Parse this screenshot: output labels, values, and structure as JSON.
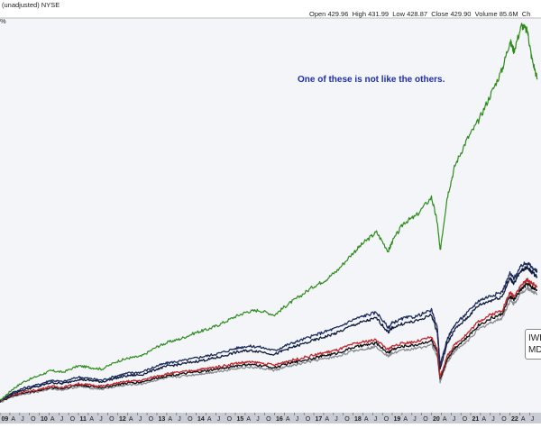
{
  "header": {
    "symbol_text": "(unadjusted)  NYSE",
    "left_fragment": "%",
    "open_label": "Open",
    "open_value": "429.96",
    "high_label": "High",
    "high_value": "431.99",
    "low_label": "Low",
    "low_value": "428.87",
    "close_label": "Close",
    "close_value": "429.90",
    "volume_label": "Volume",
    "volume_value": "85.6M",
    "chg_fragment": "Ch"
  },
  "annotation": "One of these is not like the others.",
  "legend": {
    "entry1": "IWB",
    "entry2": "MD"
  },
  "colors": {
    "plot_bg": "#f4f5f9",
    "green": "#2e8b1c",
    "navy": "#1c2b5e",
    "dark_navy": "#0f1a3a",
    "red": "#c0262c",
    "gray": "#8a8d92",
    "black": "#111111",
    "axis_bg": "#c9ccd3"
  },
  "chart_data": {
    "type": "line",
    "title": "",
    "xlabel": "",
    "ylabel": "",
    "x_range": [
      2009.0,
      2022.7
    ],
    "y_range": [
      0,
      12
    ],
    "grid": false,
    "x_tick_labels": [
      "09",
      "A",
      "J",
      "O",
      "10",
      "A",
      "J",
      "O",
      "11",
      "A",
      "J",
      "O",
      "12",
      "A",
      "J",
      "O",
      "13",
      "A",
      "J",
      "O",
      "14",
      "A",
      "J",
      "O",
      "15",
      "A",
      "J",
      "O",
      "16",
      "A",
      "J",
      "O",
      "17",
      "A",
      "J",
      "O",
      "18",
      "A",
      "J",
      "O",
      "19",
      "A",
      "J",
      "O",
      "20",
      "A",
      "J",
      "O",
      "21",
      "A",
      "J",
      "O",
      "22",
      "A",
      "J"
    ],
    "series": [
      {
        "name": "",
        "color": "green",
        "x": [
          2009.0,
          2009.3,
          2009.6,
          2010.0,
          2010.3,
          2010.6,
          2011.0,
          2011.3,
          2011.6,
          2012.0,
          2012.3,
          2012.6,
          2013.0,
          2013.3,
          2013.6,
          2014.0,
          2014.3,
          2014.6,
          2015.0,
          2015.3,
          2015.6,
          2016.0,
          2016.3,
          2016.6,
          2017.0,
          2017.3,
          2017.6,
          2018.0,
          2018.3,
          2018.6,
          2018.9,
          2019.0,
          2019.3,
          2019.6,
          2020.0,
          2020.15,
          2020.22,
          2020.4,
          2020.6,
          2020.9,
          2021.2,
          2021.5,
          2021.8,
          2022.0,
          2022.1,
          2022.3,
          2022.45,
          2022.55,
          2022.7
        ],
        "y": [
          0.2,
          0.55,
          0.8,
          1.0,
          1.15,
          1.1,
          1.3,
          1.25,
          1.2,
          1.45,
          1.55,
          1.6,
          1.9,
          2.05,
          2.15,
          2.35,
          2.45,
          2.6,
          2.85,
          3.0,
          3.05,
          2.9,
          3.2,
          3.45,
          3.8,
          4.0,
          4.3,
          4.85,
          5.2,
          5.5,
          4.9,
          5.2,
          5.8,
          6.0,
          6.6,
          5.8,
          4.9,
          6.6,
          7.6,
          8.4,
          9.0,
          9.8,
          10.6,
          11.5,
          11.2,
          12.0,
          11.8,
          11.0,
          10.3
        ]
      },
      {
        "name": "",
        "color": "navy",
        "x": [
          2009.0,
          2009.3,
          2009.6,
          2010.0,
          2010.3,
          2010.6,
          2011.0,
          2011.3,
          2011.6,
          2012.0,
          2012.3,
          2012.6,
          2013.0,
          2013.3,
          2013.6,
          2014.0,
          2014.3,
          2014.6,
          2015.0,
          2015.3,
          2015.6,
          2016.0,
          2016.3,
          2016.6,
          2017.0,
          2017.3,
          2017.6,
          2018.0,
          2018.3,
          2018.6,
          2018.9,
          2019.0,
          2019.3,
          2019.6,
          2020.0,
          2020.15,
          2020.22,
          2020.4,
          2020.6,
          2020.9,
          2021.2,
          2021.5,
          2021.8,
          2022.0,
          2022.1,
          2022.3,
          2022.45,
          2022.55,
          2022.7
        ],
        "y": [
          0.2,
          0.45,
          0.6,
          0.72,
          0.85,
          0.8,
          0.95,
          0.9,
          0.85,
          1.0,
          1.08,
          1.1,
          1.3,
          1.4,
          1.45,
          1.55,
          1.62,
          1.7,
          1.85,
          1.92,
          1.9,
          1.78,
          1.95,
          2.08,
          2.25,
          2.38,
          2.5,
          2.75,
          2.88,
          2.98,
          2.5,
          2.65,
          2.8,
          2.85,
          3.05,
          2.5,
          1.3,
          2.15,
          2.6,
          2.95,
          3.35,
          3.5,
          3.62,
          4.2,
          4.05,
          4.45,
          4.55,
          4.4,
          4.25
        ]
      },
      {
        "name": "",
        "color": "dark_navy",
        "x": [
          2009.0,
          2009.3,
          2009.6,
          2010.0,
          2010.3,
          2010.6,
          2011.0,
          2011.3,
          2011.6,
          2012.0,
          2012.3,
          2012.6,
          2013.0,
          2013.3,
          2013.6,
          2014.0,
          2014.3,
          2014.6,
          2015.0,
          2015.3,
          2015.6,
          2016.0,
          2016.3,
          2016.6,
          2017.0,
          2017.3,
          2017.6,
          2018.0,
          2018.3,
          2018.6,
          2018.9,
          2019.0,
          2019.3,
          2019.6,
          2020.0,
          2020.15,
          2020.22,
          2020.4,
          2020.6,
          2020.9,
          2021.2,
          2021.5,
          2021.8,
          2022.0,
          2022.1,
          2022.3,
          2022.45,
          2022.55,
          2022.7
        ],
        "y": [
          0.2,
          0.42,
          0.55,
          0.66,
          0.78,
          0.74,
          0.88,
          0.84,
          0.8,
          0.93,
          1.0,
          1.02,
          1.2,
          1.3,
          1.35,
          1.44,
          1.5,
          1.58,
          1.72,
          1.78,
          1.76,
          1.66,
          1.82,
          1.94,
          2.1,
          2.22,
          2.34,
          2.58,
          2.7,
          2.8,
          2.35,
          2.5,
          2.64,
          2.7,
          2.9,
          2.35,
          1.2,
          2.0,
          2.45,
          2.8,
          3.2,
          3.35,
          3.48,
          4.05,
          3.9,
          4.3,
          4.4,
          4.25,
          4.1
        ]
      },
      {
        "name": "",
        "color": "red",
        "x": [
          2009.0,
          2009.3,
          2009.6,
          2010.0,
          2010.3,
          2010.6,
          2011.0,
          2011.3,
          2011.6,
          2012.0,
          2012.3,
          2012.6,
          2013.0,
          2013.3,
          2013.6,
          2014.0,
          2014.3,
          2014.6,
          2015.0,
          2015.3,
          2015.6,
          2016.0,
          2016.3,
          2016.6,
          2017.0,
          2017.3,
          2017.6,
          2018.0,
          2018.3,
          2018.6,
          2018.9,
          2019.0,
          2019.3,
          2019.6,
          2020.0,
          2020.15,
          2020.22,
          2020.4,
          2020.6,
          2020.9,
          2021.2,
          2021.5,
          2021.8,
          2022.0,
          2022.1,
          2022.3,
          2022.45,
          2022.55,
          2022.7
        ],
        "y": [
          0.2,
          0.38,
          0.48,
          0.56,
          0.66,
          0.63,
          0.74,
          0.7,
          0.66,
          0.76,
          0.82,
          0.84,
          0.98,
          1.06,
          1.1,
          1.17,
          1.22,
          1.28,
          1.38,
          1.42,
          1.4,
          1.32,
          1.44,
          1.52,
          1.64,
          1.72,
          1.8,
          1.98,
          2.06,
          2.12,
          1.8,
          1.92,
          2.02,
          2.06,
          2.2,
          1.8,
          0.95,
          1.6,
          1.98,
          2.3,
          2.7,
          2.9,
          3.05,
          3.6,
          3.5,
          3.85,
          4.0,
          3.9,
          3.8
        ]
      },
      {
        "name": "",
        "color": "gray",
        "x": [
          2009.0,
          2009.3,
          2009.6,
          2010.0,
          2010.3,
          2010.6,
          2011.0,
          2011.3,
          2011.6,
          2012.0,
          2012.3,
          2012.6,
          2013.0,
          2013.3,
          2013.6,
          2014.0,
          2014.3,
          2014.6,
          2015.0,
          2015.3,
          2015.6,
          2016.0,
          2016.3,
          2016.6,
          2017.0,
          2017.3,
          2017.6,
          2018.0,
          2018.3,
          2018.6,
          2018.9,
          2019.0,
          2019.3,
          2019.6,
          2020.0,
          2020.15,
          2020.22,
          2020.4,
          2020.6,
          2020.9,
          2021.2,
          2021.5,
          2021.8,
          2022.0,
          2022.1,
          2022.3,
          2022.45,
          2022.55,
          2022.7
        ],
        "y": [
          0.15,
          0.33,
          0.42,
          0.5,
          0.58,
          0.55,
          0.65,
          0.61,
          0.57,
          0.66,
          0.71,
          0.73,
          0.86,
          0.93,
          0.97,
          1.03,
          1.08,
          1.13,
          1.22,
          1.26,
          1.24,
          1.16,
          1.27,
          1.35,
          1.46,
          1.53,
          1.6,
          1.77,
          1.84,
          1.9,
          1.6,
          1.7,
          1.8,
          1.84,
          1.97,
          1.6,
          0.8,
          1.42,
          1.77,
          2.06,
          2.45,
          2.65,
          2.8,
          3.35,
          3.25,
          3.6,
          3.75,
          3.65,
          3.55
        ]
      },
      {
        "name": "",
        "color": "black",
        "x": [
          2009.0,
          2009.3,
          2009.6,
          2010.0,
          2010.3,
          2010.6,
          2011.0,
          2011.3,
          2011.6,
          2012.0,
          2012.3,
          2012.6,
          2013.0,
          2013.3,
          2013.6,
          2014.0,
          2014.3,
          2014.6,
          2015.0,
          2015.3,
          2015.6,
          2016.0,
          2016.3,
          2016.6,
          2017.0,
          2017.3,
          2017.6,
          2018.0,
          2018.3,
          2018.6,
          2018.9,
          2019.0,
          2019.3,
          2019.6,
          2020.0,
          2020.15,
          2020.22,
          2020.4,
          2020.6,
          2020.9,
          2021.2,
          2021.5,
          2021.8,
          2022.0,
          2022.1,
          2022.3,
          2022.45,
          2022.55,
          2022.7
        ],
        "y": [
          0.18,
          0.35,
          0.45,
          0.53,
          0.62,
          0.59,
          0.7,
          0.66,
          0.62,
          0.71,
          0.77,
          0.79,
          0.92,
          1.0,
          1.04,
          1.1,
          1.15,
          1.21,
          1.3,
          1.34,
          1.32,
          1.24,
          1.36,
          1.44,
          1.55,
          1.63,
          1.7,
          1.88,
          1.95,
          2.01,
          1.7,
          1.82,
          1.92,
          1.96,
          2.1,
          1.7,
          0.88,
          1.52,
          1.88,
          2.18,
          2.58,
          2.78,
          2.93,
          3.48,
          3.38,
          3.73,
          3.88,
          3.78,
          3.68
        ]
      }
    ]
  }
}
